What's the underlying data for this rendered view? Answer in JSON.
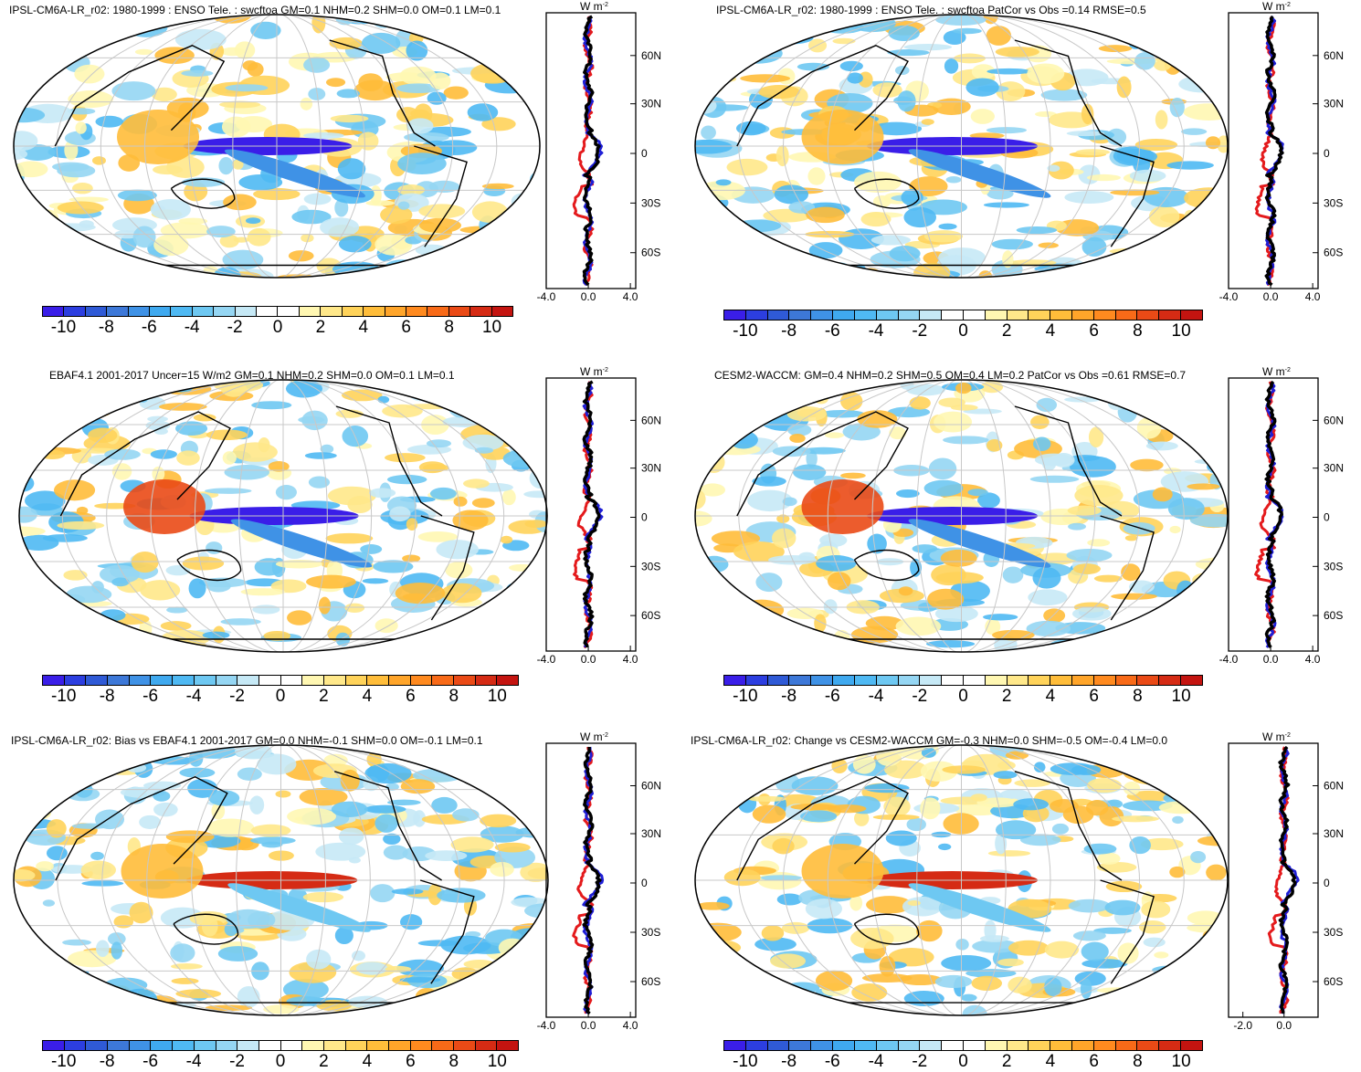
{
  "colorbar": {
    "labels": [
      "-10",
      "-8",
      "-6",
      "-4",
      "-2",
      "0",
      "2",
      "4",
      "6",
      "8",
      "10"
    ],
    "colors": [
      "#3a1ee8",
      "#2c3ee0",
      "#2f5ad6",
      "#3d78d8",
      "#3f92e6",
      "#3fa9ef",
      "#4fb9f3",
      "#6ec8f2",
      "#95d6f3",
      "#c6e9f6",
      "#ffffff",
      "#ffffff",
      "#fff7b2",
      "#ffe88a",
      "#ffd35a",
      "#ffbd3a",
      "#ffa52a",
      "#ff8a1f",
      "#f86a18",
      "#ea4a16",
      "#d52b14",
      "#c41410"
    ]
  },
  "zonal_unit": "W m",
  "zonal_unit_exp": "-2",
  "lat_labels": [
    "60N",
    "30N",
    "0",
    "30S",
    "60S"
  ],
  "panels": [
    {
      "id": "top-left",
      "title": "IPSL-CM6A-LR_r02: 1980-1999 : ENSO Tele. : swcftoa GM=0.1 NHM=0.2 SHM=0.0 OM=0.1 LM=0.1",
      "xticks": [
        "-4.0",
        "0.0",
        "4.0"
      ]
    },
    {
      "id": "top-right",
      "title": "IPSL-CM6A-LR_r02: 1980-1999 : ENSO Tele. : swcftoa PatCor vs Obs =0.14 RMSE=0.5",
      "xticks": [
        "-4.0",
        "0.0",
        "4.0"
      ]
    },
    {
      "id": "mid-left",
      "title": "EBAF4.1 2001-2017 Uncer=15 W/m2 GM=0.1 NHM=0.2 SHM=0.0 OM=0.1 LM=0.1",
      "xticks": [
        "-4.0",
        "0.0",
        "4.0"
      ]
    },
    {
      "id": "mid-right",
      "title": "CESM2-WACCM: GM=0.4 NHM=0.2 SHM=0.5 OM=0.4 LM=0.2 PatCor vs Obs =0.61 RMSE=0.7",
      "xticks": [
        "-4.0",
        "0.0",
        "4.0"
      ]
    },
    {
      "id": "bot-left",
      "title": "IPSL-CM6A-LR_r02: Bias vs EBAF4.1 2001-2017 GM=0.0 NHM=-0.1 SHM=0.0 OM=-0.1 LM=0.1",
      "xticks": [
        "-4.0",
        "0.0",
        "4.0"
      ]
    },
    {
      "id": "bot-right",
      "title": "IPSL-CM6A-LR_r02: Change vs CESM2-WACCM GM=-0.3 NHM=0.0 SHM=-0.5 OM=-0.4 LM=0.0",
      "xticks": [
        "-2.0",
        "0.0"
      ]
    }
  ]
}
